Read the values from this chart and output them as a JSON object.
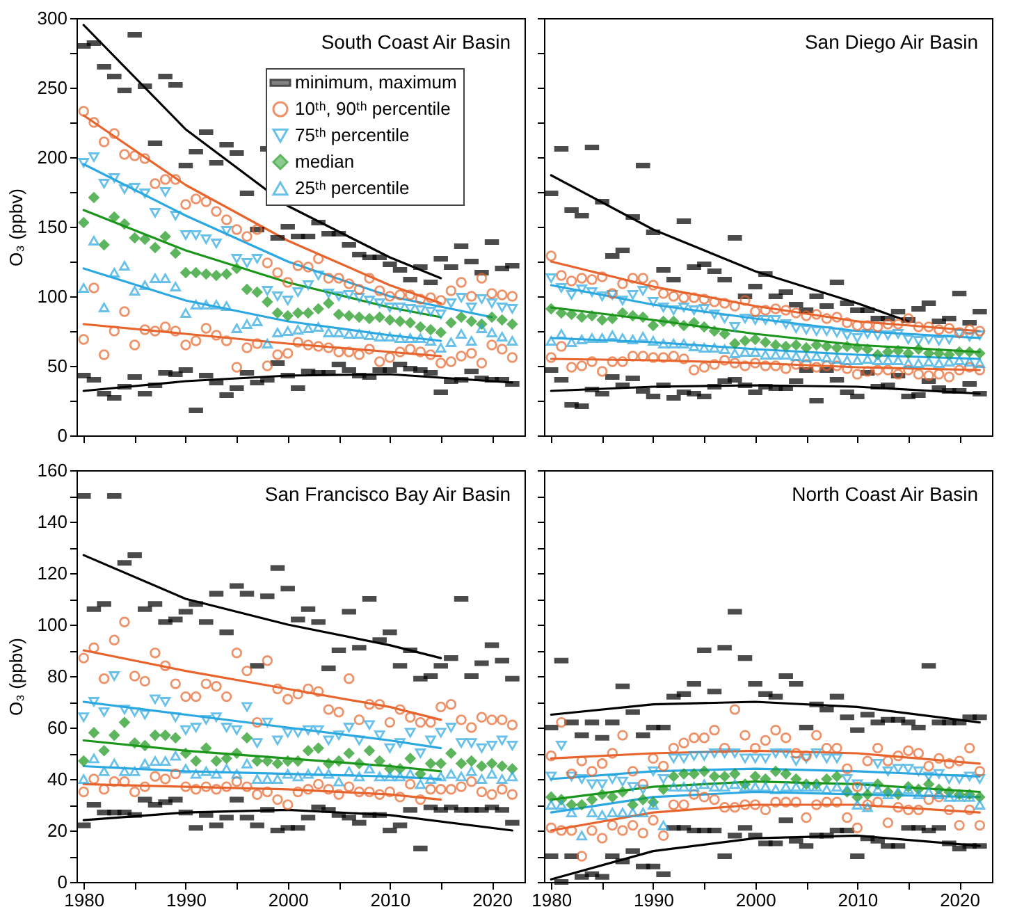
{
  "chart_data": [
    {
      "type": "scatter",
      "title": "South Coast Air Basin",
      "ylabel": "O₃ (ppbv)",
      "legend": "top right",
      "tick_labels": "y",
      "x": [
        1980,
        1981,
        1982,
        1983,
        1984,
        1985,
        1986,
        1987,
        1988,
        1989,
        1990,
        1991,
        1992,
        1993,
        1994,
        1995,
        1996,
        1997,
        1998,
        1999,
        2000,
        2001,
        2002,
        2003,
        2004,
        2005,
        2006,
        2007,
        2008,
        2009,
        2010,
        2011,
        2012,
        2013,
        2014,
        2015,
        2016,
        2017,
        2018,
        2019,
        2020,
        2021,
        2022
      ],
      "xlim": [
        1979.3,
        2023.2
      ],
      "xticks": [
        1980,
        {
          "value": 1985,
          "label": null
        },
        1990,
        {
          "value": 1995,
          "label": null
        },
        2000,
        {
          "value": 2005,
          "label": null
        },
        2010,
        {
          "value": 2015,
          "label": null
        },
        2020
      ],
      "ylim": [
        0,
        300
      ],
      "yticks": [
        0,
        {
          "value": 25,
          "label": null
        },
        50,
        {
          "value": 75,
          "label": null
        },
        100,
        {
          "value": 125,
          "label": null
        },
        150,
        {
          "value": 175,
          "label": null
        },
        200,
        {
          "value": 225,
          "label": null
        },
        250,
        {
          "value": 275,
          "label": null
        },
        300
      ],
      "series": [
        {
          "name": "minimum, maximum",
          "color": "#000000",
          "marker": "square",
          "values": [
            43,
            40,
            30,
            27,
            35,
            42,
            30,
            36,
            45,
            44,
            47,
            18,
            43,
            38,
            29,
            34,
            45,
            38,
            40,
            52,
            43,
            34,
            46,
            45,
            45,
            51,
            47,
            43,
            42,
            47,
            47,
            51,
            48,
            47,
            45,
            31,
            39,
            40,
            46,
            41,
            40,
            40,
            37
          ]
        },
        {
          "name": "10ᵗʰ, 90ᵗʰ percentile",
          "color": "#e8642c",
          "marker": "circle",
          "values": [
            69,
            106,
            58,
            75,
            89,
            65,
            76,
            75,
            78,
            75,
            65,
            68,
            77,
            72,
            68,
            49,
            63,
            66,
            50,
            58,
            59,
            67,
            65,
            64,
            63,
            60,
            60,
            58,
            62,
            53,
            56,
            60,
            62,
            60,
            58,
            52,
            53,
            57,
            59,
            52,
            65,
            62,
            56
          ]
        },
        {
          "name": "75ᵗʰ percentile",
          "color": "#2ba8e2",
          "marker": "triangle-down",
          "values": [
            196,
            200,
            181,
            185,
            177,
            178,
            174,
            160,
            175,
            158,
            144,
            144,
            141,
            138,
            147,
            127,
            124,
            127,
            104,
            100,
            97,
            103,
            108,
            115,
            102,
            100,
            101,
            99,
            97,
            95,
            92,
            92,
            91,
            90,
            89,
            87,
            95,
            99,
            92,
            98,
            95,
            92,
            91
          ]
        },
        {
          "name": "median",
          "color": "#1a961a",
          "marker": "diamond",
          "values": [
            153,
            171,
            137,
            157,
            152,
            142,
            141,
            135,
            143,
            131,
            117,
            117,
            116,
            115,
            116,
            120,
            105,
            103,
            96,
            88,
            86,
            88,
            88,
            91,
            95,
            87,
            86,
            85,
            84,
            85,
            83,
            82,
            81,
            78,
            76,
            74,
            81,
            85,
            82,
            80,
            85,
            83,
            80
          ]
        },
        {
          "name": "25ᵗʰ percentile",
          "color": "#2ba8e2",
          "marker": "triangle",
          "values": [
            106,
            140,
            92,
            117,
            122,
            104,
            108,
            113,
            113,
            107,
            88,
            94,
            94,
            94,
            93,
            77,
            80,
            82,
            66,
            74,
            75,
            76,
            77,
            78,
            74,
            74,
            73,
            73,
            72,
            71,
            71,
            70,
            70,
            70,
            68,
            63,
            67,
            73,
            68,
            77,
            74,
            71,
            68
          ]
        },
        {
          "color": "#000000",
          "marker": "square",
          "values": [
            280,
            282,
            265,
            258,
            248,
            288,
            251,
            210,
            258,
            252,
            194,
            204,
            218,
            196,
            209,
            203,
            174,
            148,
            206,
            142,
            150,
            143,
            143,
            153,
            145,
            145,
            137,
            130,
            128,
            128,
            123,
            119,
            112,
            121,
            110,
            127,
            121,
            136,
            125,
            117,
            139,
            120,
            122
          ]
        },
        {
          "color": "#e8642c",
          "marker": "circle",
          "values": [
            233,
            225,
            211,
            217,
            202,
            201,
            199,
            181,
            184,
            184,
            166,
            170,
            168,
            161,
            155,
            148,
            143,
            148,
            124,
            117,
            110,
            122,
            121,
            127,
            113,
            113,
            109,
            105,
            113,
            104,
            100,
            101,
            101,
            98,
            99,
            97,
            104,
            110,
            100,
            113,
            102,
            101,
            100
          ]
        },
        {
          "type": "line",
          "color": "#000000",
          "x": [
            1980,
            1990,
            2000,
            2010,
            2015
          ],
          "values": [
            295,
            220,
            165,
            128,
            113
          ]
        },
        {
          "type": "line",
          "color": "#e8642c",
          "x": [
            1980,
            1990,
            2000,
            2010,
            2015
          ],
          "values": [
            230,
            180,
            140,
            108,
            95
          ]
        },
        {
          "type": "line",
          "color": "#2ba8e2",
          "x": [
            1980,
            1990,
            2000,
            2010,
            2020
          ],
          "values": [
            195,
            158,
            125,
            100,
            85
          ]
        },
        {
          "type": "line",
          "color": "#1a961a",
          "x": [
            1980,
            1990,
            2000,
            2010,
            2015
          ],
          "values": [
            162,
            133,
            110,
            92,
            85
          ]
        },
        {
          "type": "line",
          "color": "#2ba8e2",
          "x": [
            1980,
            1990,
            2000,
            2010,
            2015
          ],
          "values": [
            120,
            97,
            82,
            72,
            68
          ]
        },
        {
          "type": "line",
          "color": "#e8642c",
          "x": [
            1980,
            1990,
            2000,
            2010,
            2015
          ],
          "values": [
            80,
            73,
            66,
            60,
            57
          ]
        },
        {
          "type": "line",
          "color": "#000000",
          "x": [
            1980,
            1990,
            2000,
            2010,
            2022
          ],
          "values": [
            32,
            39,
            43,
            44,
            38
          ]
        }
      ]
    },
    {
      "type": "scatter",
      "title": "San Diego Air Basin",
      "tick_labels": false,
      "x": [
        1980,
        1981,
        1982,
        1983,
        1984,
        1985,
        1986,
        1987,
        1988,
        1989,
        1990,
        1991,
        1992,
        1993,
        1994,
        1995,
        1996,
        1997,
        1998,
        1999,
        2000,
        2001,
        2002,
        2003,
        2004,
        2005,
        2006,
        2007,
        2008,
        2009,
        2010,
        2011,
        2012,
        2013,
        2014,
        2015,
        2016,
        2017,
        2018,
        2019,
        2020,
        2021,
        2022
      ],
      "xlim": [
        1979.3,
        2023.2
      ],
      "xticks": [
        1980,
        {
          "value": 1985,
          "label": null
        },
        1990,
        {
          "value": 1995,
          "label": null
        },
        2000,
        {
          "value": 2005,
          "label": null
        },
        2010,
        {
          "value": 2015,
          "label": null
        },
        2020
      ],
      "ylim": [
        0,
        300
      ],
      "yticks": [
        0,
        {
          "value": 25,
          "label": null
        },
        50,
        {
          "value": 75,
          "label": null
        },
        100,
        {
          "value": 125,
          "label": null
        },
        150,
        {
          "value": 175,
          "label": null
        },
        200,
        {
          "value": 225,
          "label": null
        },
        250,
        {
          "value": 275,
          "label": null
        },
        300
      ],
      "series": [
        {
          "color": "#000000",
          "marker": "square",
          "values": [
            47,
            40,
            22,
            21,
            33,
            30,
            42,
            36,
            41,
            32,
            28,
            36,
            27,
            31,
            30,
            28,
            35,
            39,
            40,
            36,
            31,
            35,
            34,
            34,
            39,
            47,
            25,
            47,
            40,
            31,
            28,
            45,
            35,
            36,
            43,
            28,
            29,
            39,
            34,
            32,
            32,
            37,
            30
          ]
        },
        {
          "color": "#e8642c",
          "marker": "circle",
          "values": [
            56,
            64,
            49,
            50,
            53,
            46,
            53,
            53,
            57,
            57,
            56,
            56,
            57,
            55,
            47,
            49,
            51,
            54,
            52,
            50,
            52,
            50,
            50,
            48,
            51,
            51,
            49,
            50,
            50,
            48,
            44,
            46,
            47,
            47,
            44,
            47,
            44,
            43,
            44,
            42,
            47,
            49,
            47
          ]
        },
        {
          "color": "#2ba8e2",
          "marker": "triangle-down",
          "values": [
            113,
            106,
            101,
            105,
            103,
            100,
            101,
            97,
            101,
            104,
            96,
            92,
            90,
            92,
            90,
            91,
            87,
            84,
            78,
            84,
            83,
            83,
            83,
            80,
            77,
            76,
            75,
            75,
            74,
            72,
            70,
            73,
            72,
            72,
            73,
            69,
            68,
            69,
            68,
            69,
            73,
            71,
            72
          ]
        },
        {
          "color": "#1a961a",
          "marker": "diamond",
          "values": [
            91,
            88,
            87,
            85,
            86,
            83,
            84,
            88,
            86,
            85,
            79,
            82,
            82,
            79,
            81,
            78,
            75,
            73,
            66,
            68,
            69,
            67,
            65,
            64,
            65,
            63,
            65,
            64,
            63,
            64,
            63,
            62,
            58,
            60,
            61,
            59,
            62,
            59,
            59,
            58,
            60,
            60,
            59
          ]
        },
        {
          "color": "#2ba8e2",
          "marker": "triangle",
          "values": [
            68,
            73,
            67,
            69,
            70,
            70,
            72,
            70,
            69,
            71,
            68,
            66,
            66,
            66,
            64,
            63,
            63,
            62,
            59,
            60,
            60,
            58,
            58,
            58,
            57,
            56,
            57,
            56,
            55,
            54,
            54,
            55,
            54,
            54,
            54,
            52,
            52,
            53,
            52,
            53,
            54,
            53,
            52
          ]
        },
        {
          "color": "#000000",
          "marker": "square",
          "values": [
            174,
            206,
            162,
            158,
            207,
            168,
            129,
            133,
            157,
            194,
            146,
            119,
            112,
            154,
            121,
            123,
            118,
            112,
            142,
            100,
            107,
            116,
            100,
            103,
            94,
            90,
            100,
            93,
            110,
            95,
            90,
            90,
            84,
            84,
            89,
            83,
            91,
            95,
            82,
            84,
            102,
            81,
            89
          ]
        },
        {
          "color": "#e8642c",
          "marker": "circle",
          "values": [
            129,
            115,
            111,
            113,
            112,
            114,
            102,
            109,
            113,
            113,
            108,
            102,
            100,
            99,
            99,
            98,
            96,
            95,
            93,
            97,
            89,
            90,
            91,
            90,
            88,
            86,
            87,
            84,
            85,
            81,
            79,
            79,
            78,
            80,
            80,
            84,
            78,
            78,
            76,
            77,
            74,
            76,
            75
          ]
        },
        {
          "type": "line",
          "color": "#000000",
          "x": [
            1980,
            1990,
            2000,
            2010,
            2015
          ],
          "values": [
            187,
            148,
            118,
            95,
            82
          ]
        },
        {
          "type": "line",
          "color": "#e8642c",
          "x": [
            1980,
            1990,
            2000,
            2010,
            2022
          ],
          "values": [
            125,
            107,
            93,
            82,
            75
          ]
        },
        {
          "type": "line",
          "color": "#2ba8e2",
          "x": [
            1980,
            1990,
            2000,
            2010,
            2022
          ],
          "values": [
            108,
            94,
            84,
            75,
            70
          ]
        },
        {
          "type": "line",
          "color": "#1a961a",
          "x": [
            1980,
            1990,
            2000,
            2010,
            2022
          ],
          "values": [
            92,
            83,
            73,
            65,
            60
          ]
        },
        {
          "type": "line",
          "color": "#2ba8e2",
          "x": [
            1980,
            1990,
            2000,
            2010,
            2022
          ],
          "values": [
            70,
            67,
            62,
            58,
            55
          ]
        },
        {
          "type": "line",
          "color": "#e8642c",
          "x": [
            1980,
            1990,
            2000,
            2010,
            2022
          ],
          "values": [
            55,
            54,
            52,
            49,
            47
          ]
        },
        {
          "type": "line",
          "color": "#000000",
          "x": [
            1980,
            1990,
            2000,
            2010,
            2022
          ],
          "values": [
            32,
            35,
            36,
            35,
            30
          ]
        }
      ]
    },
    {
      "type": "scatter",
      "title": "San Francisco Bay Air Basin",
      "ylabel": "O₃ (ppbv)",
      "x": [
        1980,
        1981,
        1982,
        1983,
        1984,
        1985,
        1986,
        1987,
        1988,
        1989,
        1990,
        1991,
        1992,
        1993,
        1994,
        1995,
        1996,
        1997,
        1998,
        1999,
        2000,
        2001,
        2002,
        2003,
        2004,
        2005,
        2006,
        2007,
        2008,
        2009,
        2010,
        2011,
        2012,
        2013,
        2014,
        2015,
        2016,
        2017,
        2018,
        2019,
        2020,
        2021,
        2022
      ],
      "xlim": [
        1979.3,
        2023.2
      ],
      "xticks": [
        1980,
        {
          "value": 1985,
          "label": null
        },
        1990,
        {
          "value": 1995,
          "label": null
        },
        2000,
        {
          "value": 2005,
          "label": null
        },
        2010,
        {
          "value": 2015,
          "label": null
        },
        2020
      ],
      "ylim": [
        0,
        160
      ],
      "yticks": [
        0,
        {
          "value": 10,
          "label": null
        },
        20,
        {
          "value": 30,
          "label": null
        },
        40,
        {
          "value": 50,
          "label": null
        },
        60,
        {
          "value": 70,
          "label": null
        },
        80,
        {
          "value": 90,
          "label": null
        },
        100,
        {
          "value": 110,
          "label": null
        },
        120,
        {
          "value": 130,
          "label": null
        },
        140,
        {
          "value": 150,
          "label": null
        },
        160
      ],
      "series": [
        {
          "color": "#000000",
          "marker": "square",
          "values": [
            22,
            30,
            27,
            27,
            27,
            26,
            32,
            30,
            31,
            32,
            27,
            21,
            26,
            22,
            25,
            32,
            25,
            22,
            28,
            20,
            21,
            21,
            25,
            29,
            28,
            26,
            25,
            23,
            26,
            26,
            20,
            22,
            28,
            13,
            29,
            28,
            29,
            28,
            28,
            28,
            29,
            28,
            23
          ]
        },
        {
          "color": "#e8642c",
          "marker": "circle",
          "values": [
            35,
            40,
            36,
            39,
            39,
            35,
            37,
            41,
            40,
            42,
            37,
            36,
            37,
            36,
            37,
            39,
            37,
            34,
            35,
            32,
            30,
            35,
            36,
            38,
            36,
            34,
            37,
            35,
            35,
            34,
            35,
            33,
            38,
            32,
            36,
            36,
            36,
            37,
            39,
            35,
            34,
            36,
            34
          ]
        },
        {
          "color": "#2ba8e2",
          "marker": "triangle-down",
          "values": [
            64,
            70,
            66,
            80,
            67,
            66,
            65,
            71,
            70,
            64,
            59,
            60,
            63,
            64,
            60,
            59,
            68,
            54,
            62,
            55,
            58,
            58,
            59,
            59,
            55,
            57,
            60,
            55,
            61,
            57,
            52,
            54,
            58,
            50,
            55,
            58,
            60,
            54,
            54,
            52,
            53,
            55,
            53
          ]
        },
        {
          "color": "#1a961a",
          "marker": "diamond",
          "values": [
            47,
            58,
            51,
            57,
            62,
            54,
            53,
            57,
            57,
            56,
            50,
            47,
            52,
            47,
            48,
            50,
            56,
            47,
            47,
            46,
            47,
            47,
            51,
            52,
            46,
            47,
            50,
            46,
            51,
            47,
            44,
            44,
            48,
            42,
            46,
            46,
            50,
            46,
            47,
            45,
            46,
            45,
            44
          ]
        },
        {
          "color": "#2ba8e2",
          "marker": "triangle",
          "values": [
            40,
            48,
            43,
            46,
            43,
            43,
            46,
            47,
            47,
            49,
            44,
            42,
            43,
            42,
            44,
            42,
            46,
            40,
            40,
            40,
            42,
            41,
            42,
            43,
            42,
            39,
            43,
            41,
            44,
            41,
            41,
            41,
            42,
            38,
            40,
            41,
            42,
            41,
            43,
            40,
            42,
            40,
            41
          ]
        },
        {
          "color": "#000000",
          "marker": "square",
          "values": [
            150,
            106,
            108,
            150,
            124,
            127,
            106,
            108,
            101,
            102,
            105,
            108,
            101,
            112,
            97,
            115,
            112,
            84,
            111,
            122,
            114,
            102,
            106,
            101,
            83,
            90,
            105,
            91,
            110,
            94,
            97,
            84,
            90,
            79,
            80,
            84,
            87,
            110,
            80,
            85,
            92,
            86,
            79
          ]
        },
        {
          "color": "#e8642c",
          "marker": "circle",
          "values": [
            87,
            91,
            79,
            94,
            101,
            80,
            78,
            89,
            84,
            77,
            72,
            72,
            77,
            76,
            72,
            89,
            82,
            62,
            86,
            75,
            71,
            73,
            75,
            74,
            67,
            66,
            79,
            63,
            69,
            69,
            62,
            67,
            64,
            62,
            62,
            68,
            69,
            63,
            60,
            64,
            63,
            63,
            61
          ]
        },
        {
          "type": "line",
          "color": "#000000",
          "x": [
            1980,
            1990,
            2000,
            2010,
            2015
          ],
          "values": [
            127,
            110,
            100,
            92,
            87
          ]
        },
        {
          "type": "line",
          "color": "#e8642c",
          "x": [
            1980,
            1990,
            2000,
            2010,
            2015
          ],
          "values": [
            90,
            82,
            75,
            68,
            63
          ]
        },
        {
          "type": "line",
          "color": "#2ba8e2",
          "x": [
            1980,
            1990,
            2000,
            2010,
            2015
          ],
          "values": [
            70,
            65,
            60,
            55,
            52
          ]
        },
        {
          "type": "line",
          "color": "#1a961a",
          "x": [
            1980,
            1990,
            2000,
            2010,
            2015
          ],
          "values": [
            55,
            51,
            48,
            45,
            43
          ]
        },
        {
          "type": "line",
          "color": "#2ba8e2",
          "x": [
            1980,
            1990,
            2000,
            2010,
            2015
          ],
          "values": [
            45,
            43,
            42,
            41,
            40
          ]
        },
        {
          "type": "line",
          "color": "#e8642c",
          "x": [
            1980,
            1990,
            2000,
            2010,
            2015
          ],
          "values": [
            38,
            37,
            36,
            34,
            32
          ]
        },
        {
          "type": "line",
          "color": "#000000",
          "x": [
            1980,
            1990,
            2000,
            2010,
            2022
          ],
          "values": [
            24,
            27,
            28,
            26,
            20
          ]
        }
      ]
    },
    {
      "type": "scatter",
      "title": "North Coast Air Basin",
      "tick_labels": "x",
      "x": [
        1980,
        1981,
        1982,
        1983,
        1984,
        1985,
        1986,
        1987,
        1988,
        1989,
        1990,
        1991,
        1992,
        1993,
        1994,
        1995,
        1996,
        1997,
        1998,
        1999,
        2000,
        2001,
        2002,
        2003,
        2004,
        2005,
        2006,
        2007,
        2008,
        2009,
        2010,
        2011,
        2012,
        2013,
        2014,
        2015,
        2016,
        2017,
        2018,
        2019,
        2020,
        2021,
        2022
      ],
      "xlim": [
        1979.3,
        2023.2
      ],
      "xticks": [
        1980,
        {
          "value": 1985,
          "label": null
        },
        1990,
        {
          "value": 1995,
          "label": null
        },
        2000,
        {
          "value": 2005,
          "label": null
        },
        2010,
        {
          "value": 2015,
          "label": null
        },
        2020
      ],
      "ylim": [
        0,
        160
      ],
      "yticks": [
        0,
        {
          "value": 10,
          "label": null
        },
        20,
        {
          "value": 30,
          "label": null
        },
        40,
        {
          "value": 50,
          "label": null
        },
        60,
        {
          "value": 70,
          "label": null
        },
        80,
        {
          "value": 90,
          "label": null
        },
        100,
        {
          "value": 110,
          "label": null
        },
        120,
        {
          "value": 130,
          "label": null
        },
        140,
        {
          "value": 150,
          "label": null
        },
        160
      ],
      "series": [
        {
          "color": "#000000",
          "marker": "square",
          "values": [
            10,
            0,
            10,
            2,
            3,
            2,
            10,
            8,
            12,
            6,
            6,
            3,
            21,
            21,
            20,
            20,
            20,
            10,
            18,
            21,
            18,
            15,
            15,
            24,
            16,
            14,
            18,
            18,
            20,
            20,
            10,
            17,
            16,
            14,
            14,
            21,
            21,
            20,
            21,
            15,
            13,
            14,
            14
          ]
        },
        {
          "color": "#e8642c",
          "marker": "circle",
          "values": [
            21,
            20,
            20,
            10,
            20,
            17,
            22,
            20,
            22,
            19,
            24,
            18,
            30,
            30,
            34,
            33,
            32,
            29,
            29,
            30,
            30,
            28,
            31,
            31,
            31,
            25,
            30,
            31,
            31,
            25,
            21,
            30,
            31,
            23,
            29,
            28,
            28,
            32,
            33,
            28,
            22,
            28,
            22
          ]
        },
        {
          "color": "#2ba8e2",
          "marker": "triangle-down",
          "values": [
            41,
            53,
            41,
            40,
            38,
            38,
            40,
            39,
            37,
            36,
            43,
            40,
            48,
            48,
            49,
            49,
            50,
            50,
            50,
            48,
            48,
            48,
            50,
            50,
            47,
            48,
            50,
            48,
            48,
            40,
            38,
            37,
            46,
            43,
            44,
            44,
            43,
            41,
            42,
            40,
            40,
            41,
            40
          ]
        },
        {
          "color": "#1a961a",
          "marker": "diamond",
          "values": [
            33,
            32,
            30,
            30,
            32,
            34,
            33,
            35,
            30,
            32,
            31,
            36,
            41,
            42,
            42,
            43,
            41,
            41,
            42,
            38,
            41,
            40,
            43,
            42,
            40,
            38,
            38,
            40,
            41,
            35,
            33,
            34,
            38,
            35,
            34,
            37,
            36,
            38,
            36,
            35,
            34,
            34,
            33
          ]
        },
        {
          "color": "#2ba8e2",
          "marker": "triangle",
          "values": [
            30,
            30,
            27,
            18,
            27,
            26,
            27,
            27,
            27,
            27,
            30,
            22,
            37,
            37,
            37,
            38,
            37,
            37,
            38,
            37,
            37,
            37,
            36,
            37,
            37,
            37,
            37,
            36,
            37,
            36,
            30,
            29,
            36,
            34,
            35,
            36,
            34,
            35,
            34,
            33,
            33,
            33,
            30
          ]
        },
        {
          "color": "#000000",
          "marker": "square",
          "values": [
            60,
            86,
            62,
            57,
            62,
            56,
            62,
            76,
            66,
            57,
            60,
            60,
            72,
            73,
            77,
            90,
            74,
            91,
            105,
            87,
            77,
            73,
            72,
            80,
            77,
            60,
            69,
            67,
            72,
            64,
            59,
            65,
            62,
            63,
            63,
            62,
            60,
            84,
            62,
            62,
            62,
            64,
            64
          ]
        },
        {
          "color": "#e8642c",
          "marker": "circle",
          "values": [
            49,
            62,
            42,
            47,
            43,
            46,
            50,
            57,
            43,
            38,
            48,
            45,
            52,
            54,
            56,
            56,
            59,
            52,
            67,
            57,
            52,
            55,
            59,
            56,
            50,
            49,
            57,
            52,
            52,
            44,
            37,
            47,
            52,
            47,
            49,
            51,
            50,
            45,
            48,
            46,
            47,
            52,
            43
          ]
        },
        {
          "type": "line",
          "color": "#000000",
          "x": [
            1980,
            1990,
            2000,
            2010,
            2022
          ],
          "values": [
            65,
            69,
            70,
            68,
            62
          ]
        },
        {
          "type": "line",
          "color": "#e8642c",
          "x": [
            1980,
            1990,
            2000,
            2010,
            2022
          ],
          "values": [
            48,
            50,
            51,
            50,
            46
          ]
        },
        {
          "type": "line",
          "color": "#2ba8e2",
          "x": [
            1980,
            1990,
            2000,
            2010,
            2022
          ],
          "values": [
            40,
            43,
            44,
            43,
            41
          ]
        },
        {
          "type": "line",
          "color": "#1a961a",
          "x": [
            1980,
            1990,
            2000,
            2010,
            2022
          ],
          "values": [
            32,
            37,
            39,
            38,
            35
          ]
        },
        {
          "type": "line",
          "color": "#2ba8e2",
          "x": [
            1980,
            1990,
            2000,
            2010,
            2022
          ],
          "values": [
            27,
            33,
            35,
            34,
            33
          ]
        },
        {
          "type": "line",
          "color": "#e8642c",
          "x": [
            1980,
            1990,
            2000,
            2010,
            2022
          ],
          "values": [
            20,
            27,
            30,
            30,
            27
          ]
        },
        {
          "type": "line",
          "color": "#000000",
          "x": [
            1980,
            1990,
            2000,
            2010,
            2022
          ],
          "values": [
            1,
            12,
            17,
            18,
            14
          ]
        }
      ]
    }
  ]
}
